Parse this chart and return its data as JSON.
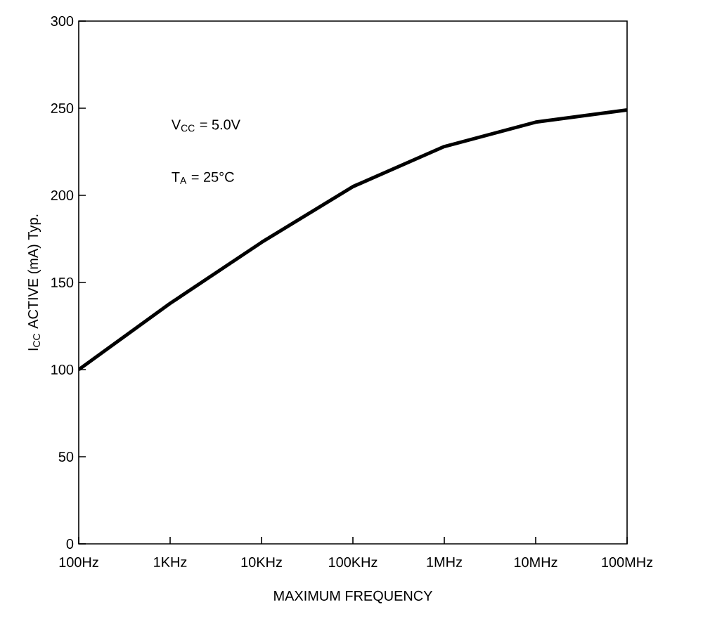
{
  "chart_data": {
    "type": "line",
    "xlabel": "MAXIMUM FREQUENCY",
    "ylabel": "I$_{CC}$ ACTIVE (mA) Typ.",
    "categories": [
      "100Hz",
      "1KHz",
      "10KHz",
      "100KHz",
      "1MHz",
      "10MHz",
      "100MHz"
    ],
    "series": [
      {
        "color": "#000000",
        "values": [
          100,
          138,
          173,
          205,
          228,
          242,
          249
        ]
      }
    ],
    "ylim": [
      0,
      300
    ],
    "yticks": [
      0,
      50,
      100,
      150,
      200,
      250,
      300
    ],
    "annotations": [
      "V$_{CC}$ = 5.0V",
      "T$_{A}$ = 25°C"
    ],
    "marker": "none",
    "line_style": "solid"
  }
}
